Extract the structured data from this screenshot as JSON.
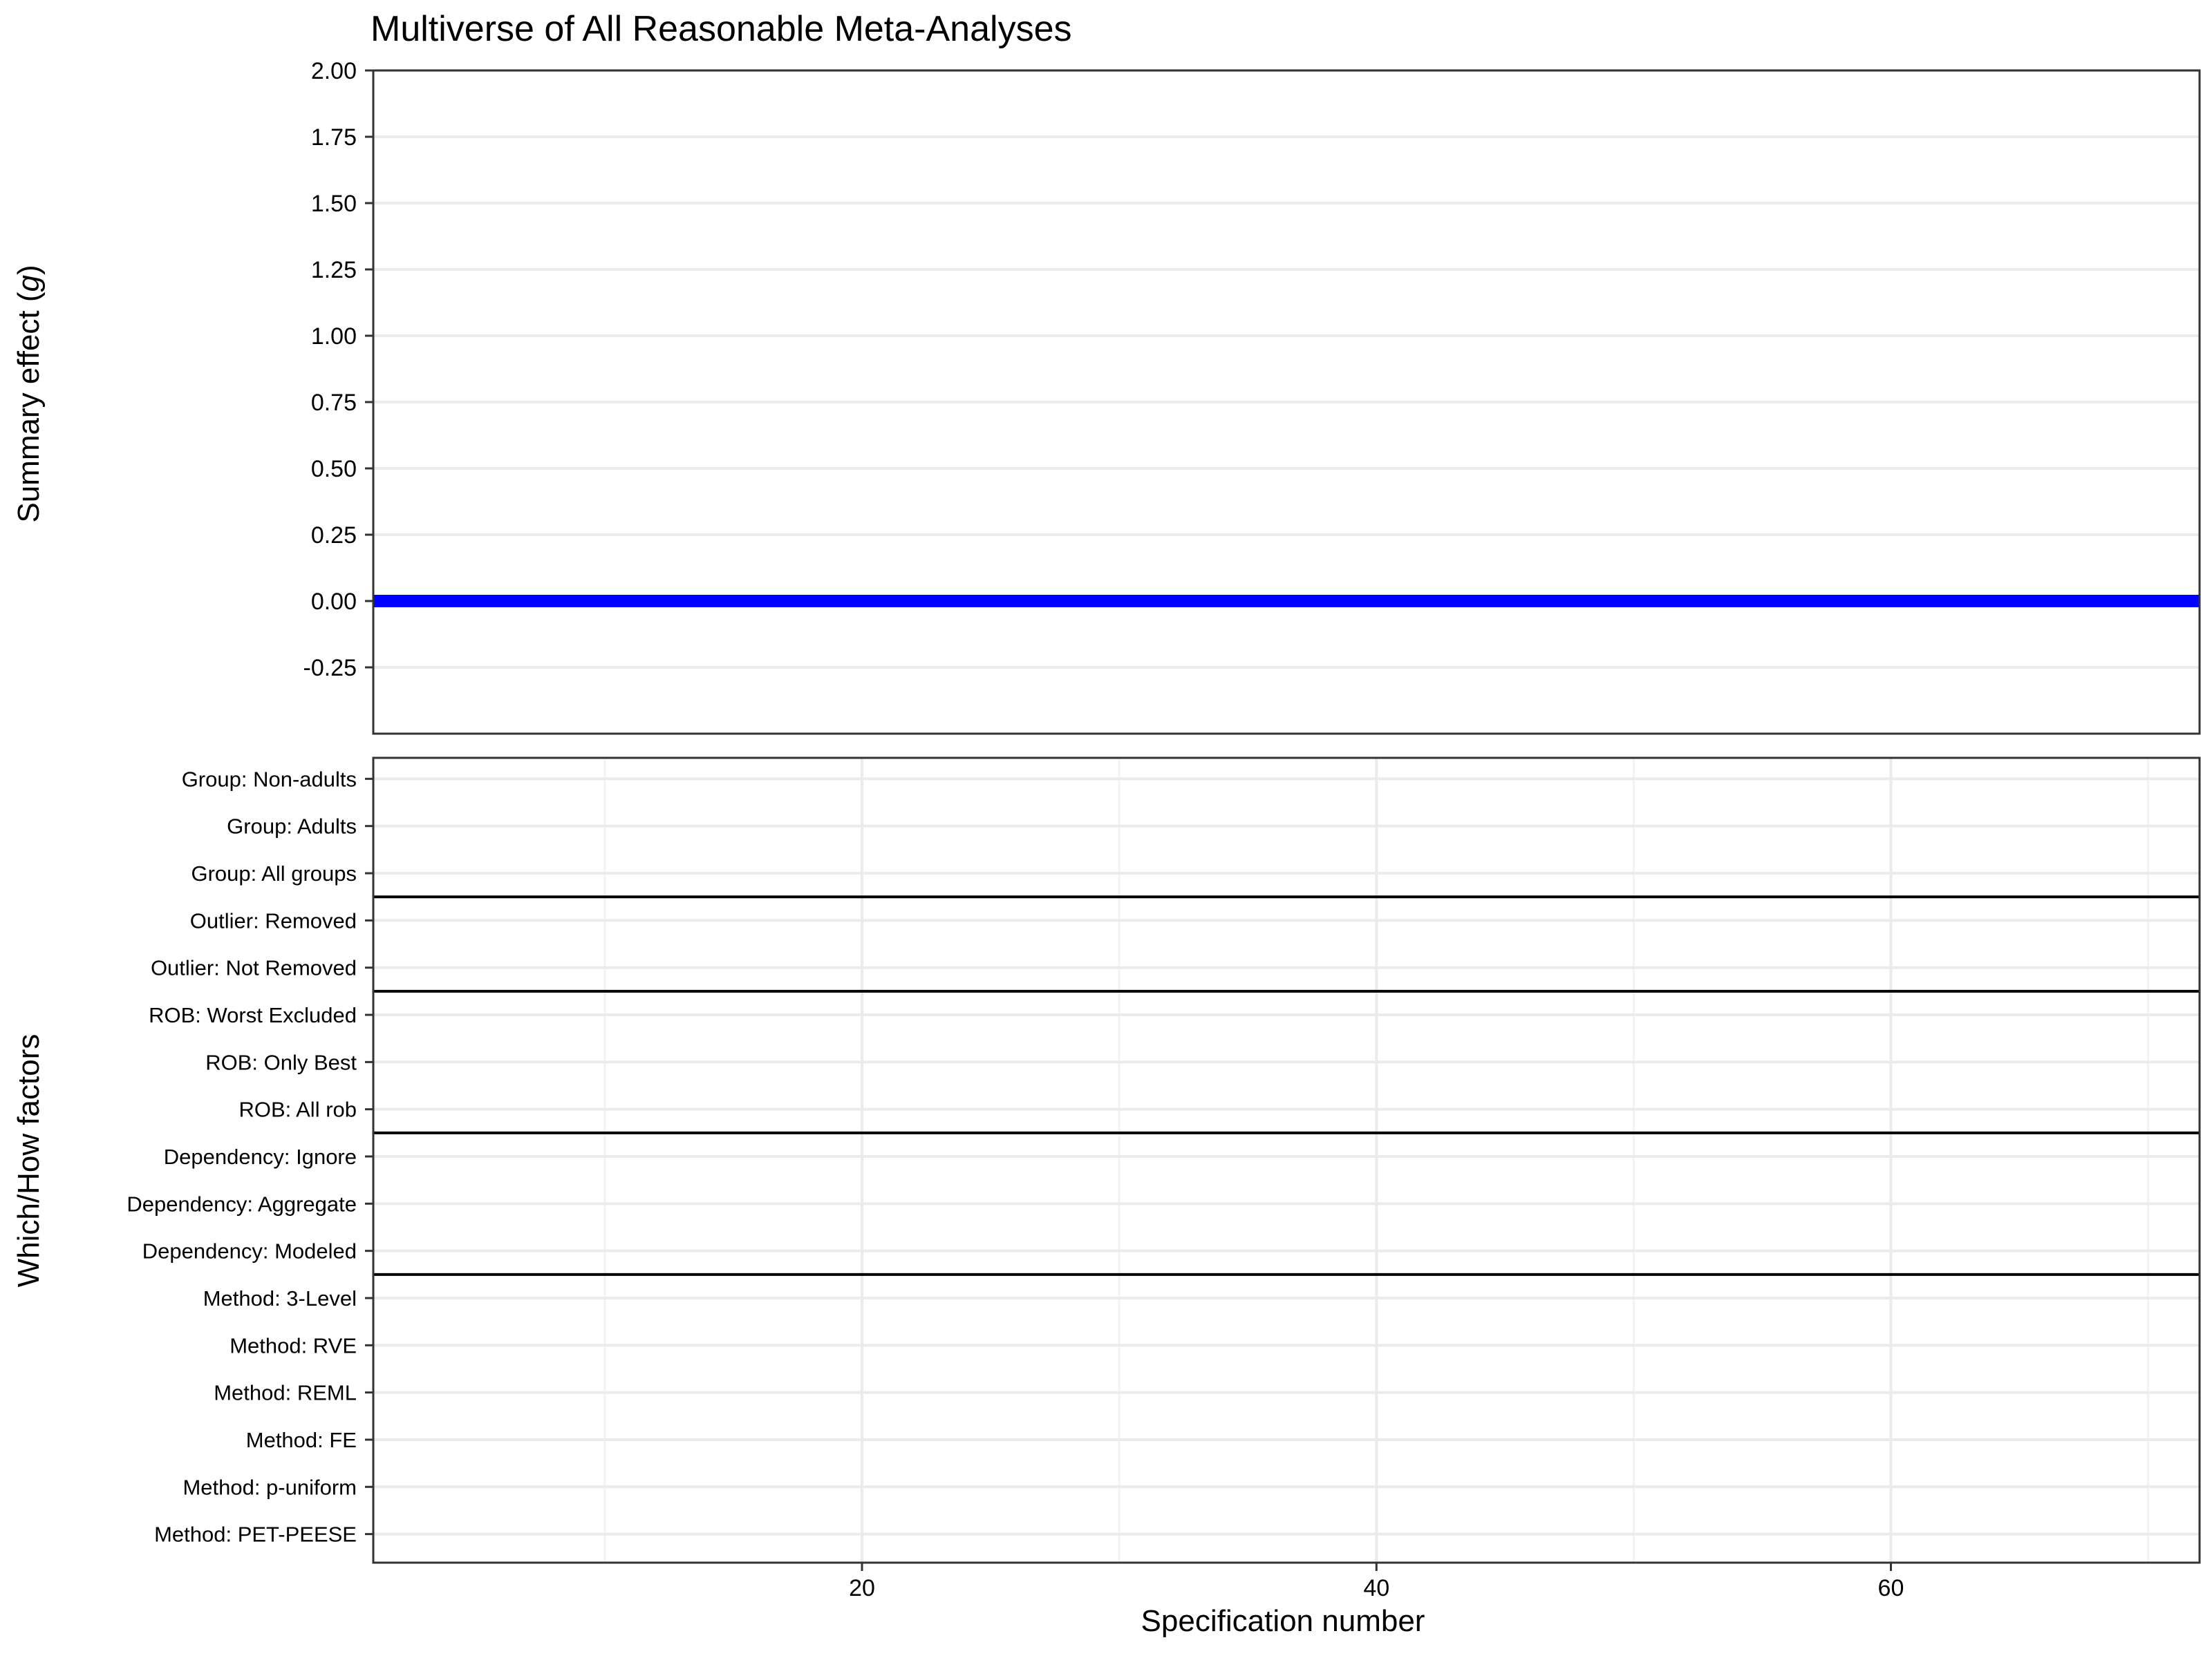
{
  "chart_data": [
    {
      "type": "line",
      "title": "Multiverse of All Reasonable Meta-Analyses",
      "ylabel_main": "Summary effect (",
      "ylabel_italic": "g",
      "ylabel_end": ")",
      "ylim": [
        -0.5,
        2.0
      ],
      "yticks": [
        2.0,
        1.75,
        1.5,
        1.25,
        1.0,
        0.75,
        0.5,
        0.25,
        0.0,
        -0.25
      ],
      "ytick_labels": [
        "2.00",
        "1.75",
        "1.50",
        "1.25",
        "1.00",
        "0.75",
        "0.50",
        "0.25",
        "0.00",
        "-0.25"
      ],
      "xlim": [
        1,
        72
      ],
      "grid": true,
      "series": [
        {
          "color": "#0000ff",
          "x": [
            1,
            72
          ],
          "y": [
            0.0,
            0.0
          ]
        }
      ]
    },
    {
      "type": "table",
      "ylabel": "Which/How factors",
      "xlabel": "Specification number",
      "xlim": [
        1,
        72
      ],
      "xticks": [
        20,
        40,
        60
      ],
      "xtick_labels": [
        "20",
        "40",
        "60"
      ],
      "factors": [
        "Group: Non-adults",
        "Group: Adults",
        "Group: All groups",
        "Outlier: Removed",
        "Outlier: Not Removed",
        "ROB: Worst Excluded",
        "ROB: Only Best",
        "ROB: All rob",
        "Dependency: Ignore",
        "Dependency: Aggregate",
        "Dependency: Modeled",
        "Method: 3-Level",
        "Method: RVE",
        "Method: REML",
        "Method: FE",
        "Method: p-uniform",
        "Method: PET-PEESE"
      ],
      "group_boundaries_after": [
        2,
        4,
        7,
        10
      ]
    }
  ]
}
